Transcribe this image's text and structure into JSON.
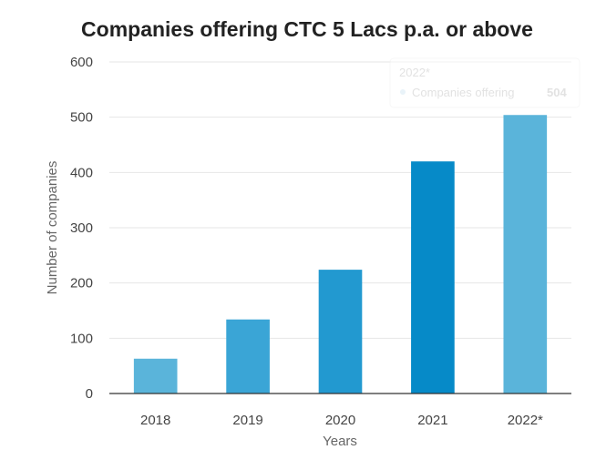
{
  "chart_data": {
    "type": "bar",
    "title": "Companies offering CTC 5 Lacs p.a. or above",
    "xlabel": "Years",
    "ylabel": "Number of companies",
    "categories": [
      "2018",
      "2019",
      "2020",
      "2021",
      "2022*"
    ],
    "series": [
      {
        "name": "Companies offering",
        "values": [
          63,
          134,
          224,
          420,
          504
        ]
      }
    ],
    "ylim": [
      0,
      600
    ],
    "yticks": [
      "0",
      "100",
      "200",
      "300",
      "400",
      "500",
      "600"
    ],
    "grid": true,
    "bar_colors": [
      "#5ab4da",
      "#3aa5d6",
      "#2299d0",
      "#068ac8",
      "#5ab4da"
    ],
    "tooltip": {
      "header": "2022*",
      "series_name": "Companies offering",
      "value": "504"
    }
  }
}
